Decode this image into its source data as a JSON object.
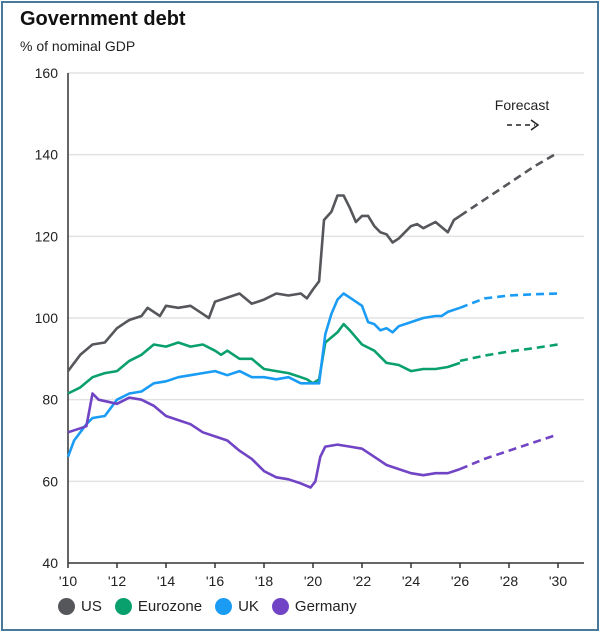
{
  "chart_data": {
    "type": "line",
    "title": "Government debt",
    "subtitle": "% of nominal GDP",
    "xlim": [
      2010,
      2030
    ],
    "ylim": [
      40,
      160
    ],
    "yticks": [
      40,
      60,
      80,
      100,
      120,
      140,
      160
    ],
    "xticks": [
      2010,
      2012,
      2014,
      2016,
      2018,
      2020,
      2022,
      2024,
      2026,
      2028,
      2030
    ],
    "xtick_labels": [
      "'10",
      "'12",
      "'14",
      "'16",
      "'18",
      "'20",
      "'22",
      "'24",
      "'26",
      "'28",
      "'30"
    ],
    "grid": "horizontal",
    "legend_placement": "bottom",
    "annotation": "Forecast",
    "series": [
      {
        "name": "US",
        "color": "#55575b",
        "actual": [
          [
            2010,
            87
          ],
          [
            2010.5,
            91
          ],
          [
            2011,
            93.5
          ],
          [
            2011.5,
            94
          ],
          [
            2012,
            97.5
          ],
          [
            2012.5,
            99.5
          ],
          [
            2013,
            100.5
          ],
          [
            2013.25,
            102.5
          ],
          [
            2013.75,
            100.5
          ],
          [
            2014,
            103
          ],
          [
            2014.5,
            102.5
          ],
          [
            2015,
            103
          ],
          [
            2015.5,
            101
          ],
          [
            2015.75,
            100
          ],
          [
            2016,
            104
          ],
          [
            2016.5,
            105
          ],
          [
            2017,
            106
          ],
          [
            2017.5,
            103.5
          ],
          [
            2018,
            104.5
          ],
          [
            2018.5,
            106
          ],
          [
            2019,
            105.5
          ],
          [
            2019.5,
            106
          ],
          [
            2019.75,
            104.8
          ],
          [
            2020,
            107
          ],
          [
            2020.25,
            109
          ],
          [
            2020.45,
            124
          ],
          [
            2020.75,
            126
          ],
          [
            2021,
            130
          ],
          [
            2021.25,
            130
          ],
          [
            2021.5,
            127
          ],
          [
            2021.75,
            123.5
          ],
          [
            2022,
            125
          ],
          [
            2022.25,
            125
          ],
          [
            2022.5,
            122.5
          ],
          [
            2022.75,
            121
          ],
          [
            2023,
            120.5
          ],
          [
            2023.25,
            118.5
          ],
          [
            2023.5,
            119.5
          ],
          [
            2024,
            122.5
          ],
          [
            2024.25,
            123
          ],
          [
            2024.5,
            122
          ],
          [
            2025,
            123.5
          ],
          [
            2025.5,
            121
          ],
          [
            2025.75,
            124
          ],
          [
            2026,
            125
          ]
        ],
        "forecast": [
          [
            2026,
            125
          ],
          [
            2027,
            129
          ],
          [
            2028,
            133
          ],
          [
            2029,
            137
          ],
          [
            2030,
            140.5
          ]
        ]
      },
      {
        "name": "Eurozone",
        "color": "#0aa06e",
        "actual": [
          [
            2010,
            81.5
          ],
          [
            2010.5,
            83
          ],
          [
            2011,
            85.5
          ],
          [
            2011.5,
            86.5
          ],
          [
            2012,
            87
          ],
          [
            2012.5,
            89.5
          ],
          [
            2013,
            91
          ],
          [
            2013.5,
            93.5
          ],
          [
            2014,
            93
          ],
          [
            2014.5,
            94
          ],
          [
            2015,
            93
          ],
          [
            2015.5,
            93.5
          ],
          [
            2016,
            92
          ],
          [
            2016.25,
            91
          ],
          [
            2016.5,
            92
          ],
          [
            2017,
            90
          ],
          [
            2017.5,
            90
          ],
          [
            2018,
            87.5
          ],
          [
            2018.5,
            87
          ],
          [
            2019,
            86.5
          ],
          [
            2019.5,
            85.5
          ],
          [
            2019.75,
            85
          ],
          [
            2020,
            84
          ],
          [
            2020.25,
            85
          ],
          [
            2020.5,
            94
          ],
          [
            2021,
            96.5
          ],
          [
            2021.25,
            98.5
          ],
          [
            2021.5,
            97
          ],
          [
            2022,
            93.5
          ],
          [
            2022.5,
            92
          ],
          [
            2023,
            89
          ],
          [
            2023.5,
            88.5
          ],
          [
            2024,
            87
          ],
          [
            2024.5,
            87.5
          ],
          [
            2025,
            87.5
          ],
          [
            2025.5,
            88
          ],
          [
            2026,
            89
          ]
        ],
        "forecast": [
          [
            2026,
            89.5
          ],
          [
            2027,
            90.8
          ],
          [
            2028,
            91.8
          ],
          [
            2029,
            92.6
          ],
          [
            2030,
            93.5
          ]
        ]
      },
      {
        "name": "UK",
        "color": "#1a9cf5",
        "actual": [
          [
            2010,
            66
          ],
          [
            2010.25,
            70
          ],
          [
            2010.75,
            74
          ],
          [
            2011,
            75.5
          ],
          [
            2011.5,
            76
          ],
          [
            2012,
            80
          ],
          [
            2012.5,
            81.5
          ],
          [
            2013,
            82
          ],
          [
            2013.5,
            84
          ],
          [
            2014,
            84.5
          ],
          [
            2014.5,
            85.5
          ],
          [
            2015,
            86
          ],
          [
            2015.5,
            86.5
          ],
          [
            2016,
            87
          ],
          [
            2016.5,
            86
          ],
          [
            2017,
            87
          ],
          [
            2017.5,
            85.5
          ],
          [
            2018,
            85.5
          ],
          [
            2018.5,
            85
          ],
          [
            2019,
            85.5
          ],
          [
            2019.5,
            84
          ],
          [
            2020,
            84
          ],
          [
            2020.25,
            84
          ],
          [
            2020.5,
            96
          ],
          [
            2020.75,
            101
          ],
          [
            2021,
            104.5
          ],
          [
            2021.25,
            106
          ],
          [
            2021.5,
            105
          ],
          [
            2022,
            103
          ],
          [
            2022.25,
            99
          ],
          [
            2022.5,
            98.5
          ],
          [
            2022.75,
            97
          ],
          [
            2023,
            97.5
          ],
          [
            2023.25,
            96.5
          ],
          [
            2023.5,
            98
          ],
          [
            2024,
            99
          ],
          [
            2024.5,
            100
          ],
          [
            2025,
            100.5
          ],
          [
            2025.25,
            100.5
          ],
          [
            2025.5,
            101.5
          ],
          [
            2026,
            102.5
          ]
        ],
        "forecast": [
          [
            2026,
            102.5
          ],
          [
            2027,
            104.8
          ],
          [
            2028,
            105.5
          ],
          [
            2029,
            105.8
          ],
          [
            2030,
            106
          ]
        ]
      },
      {
        "name": "Germany",
        "color": "#7044c4",
        "actual": [
          [
            2010,
            72
          ],
          [
            2010.5,
            73
          ],
          [
            2010.75,
            73.5
          ],
          [
            2011,
            81.5
          ],
          [
            2011.25,
            80
          ],
          [
            2012,
            79
          ],
          [
            2012.5,
            80.5
          ],
          [
            2013,
            80
          ],
          [
            2013.5,
            78.5
          ],
          [
            2014,
            76
          ],
          [
            2014.5,
            75
          ],
          [
            2015,
            74
          ],
          [
            2015.5,
            72
          ],
          [
            2016,
            71
          ],
          [
            2016.5,
            70
          ],
          [
            2017,
            67.5
          ],
          [
            2017.5,
            65.5
          ],
          [
            2018,
            62.5
          ],
          [
            2018.5,
            61
          ],
          [
            2019,
            60.5
          ],
          [
            2019.5,
            59.5
          ],
          [
            2019.9,
            58.5
          ],
          [
            2020.1,
            60
          ],
          [
            2020.3,
            66
          ],
          [
            2020.5,
            68.5
          ],
          [
            2021,
            69
          ],
          [
            2021.5,
            68.5
          ],
          [
            2022,
            68
          ],
          [
            2022.5,
            66
          ],
          [
            2023,
            64
          ],
          [
            2023.5,
            63
          ],
          [
            2024,
            62
          ],
          [
            2024.5,
            61.5
          ],
          [
            2025,
            62
          ],
          [
            2025.5,
            62
          ],
          [
            2026,
            63
          ]
        ],
        "forecast": [
          [
            2026,
            63
          ],
          [
            2027,
            65.5
          ],
          [
            2028,
            67.5
          ],
          [
            2029,
            69.5
          ],
          [
            2030,
            71.5
          ]
        ]
      }
    ]
  }
}
